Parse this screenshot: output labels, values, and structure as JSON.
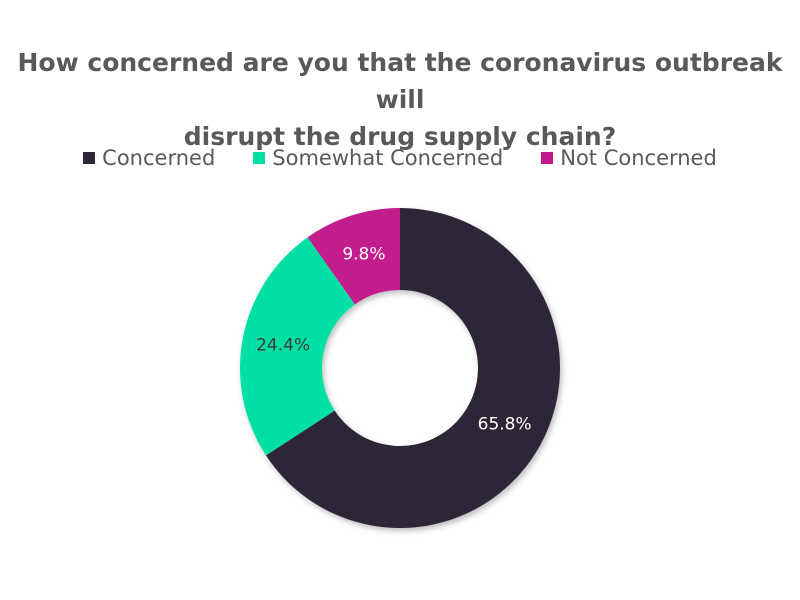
{
  "chart_data": {
    "type": "pie",
    "title_lines": [
      "How concerned are you that the coronavirus outbreak will",
      "disrupt the drug supply chain?"
    ],
    "categories": [
      "Concerned",
      "Somewhat Concerned",
      "Not Concerned"
    ],
    "values": [
      65.8,
      24.4,
      9.8
    ],
    "value_labels": [
      "65.8%",
      "24.4%",
      "9.8%"
    ],
    "colors": [
      "#2e2739",
      "#00e0a4",
      "#c21a8d"
    ],
    "label_colors": [
      "#ffffff",
      "#3a3a3a",
      "#ffffff"
    ],
    "donut": true,
    "legend_position": "top"
  }
}
